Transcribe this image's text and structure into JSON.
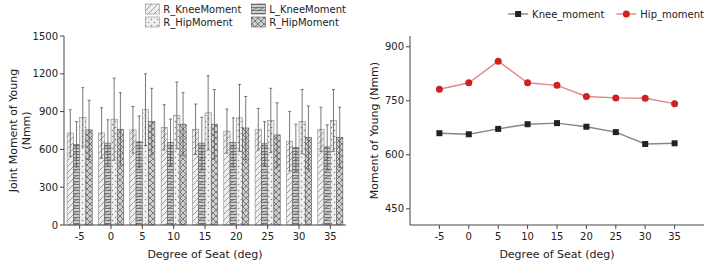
{
  "chart_data": [
    {
      "type": "bar",
      "categories": [
        -5,
        0,
        5,
        10,
        15,
        20,
        25,
        30,
        35
      ],
      "xlabel": "Degree of Seat (deg)",
      "ylabel": "Joint Moment of Young\n(Nmm)",
      "ylim": [
        0,
        1500
      ],
      "yticks": [
        0,
        300,
        600,
        900,
        1200,
        1500
      ],
      "grid": false,
      "legend": "upper right",
      "series": [
        {
          "name": "R_KneeMoment",
          "color": "#f0f0f0",
          "values": [
            730,
            730,
            755,
            775,
            760,
            745,
            760,
            665,
            760
          ],
          "errors": [
            185,
            200,
            185,
            180,
            200,
            175,
            165,
            235,
            175
          ]
        },
        {
          "name": "L_KneeMoment",
          "color": "#d0d0d0",
          "values": [
            640,
            650,
            660,
            655,
            650,
            655,
            645,
            615,
            620
          ],
          "errors": [
            180,
            185,
            205,
            185,
            205,
            195,
            175,
            185,
            175
          ]
        },
        {
          "name": "R_HipMoment",
          "color": "#f0f0f0",
          "values": [
            855,
            840,
            915,
            870,
            890,
            850,
            830,
            820,
            830
          ],
          "errors": [
            235,
            325,
            285,
            265,
            295,
            265,
            255,
            255,
            245
          ]
        },
        {
          "name": "R_HipMoment",
          "color": "#d0d0d0",
          "values": [
            755,
            760,
            820,
            800,
            800,
            770,
            715,
            695,
            695
          ],
          "errors": [
            235,
            290,
            265,
            250,
            275,
            250,
            255,
            250,
            240
          ]
        }
      ]
    },
    {
      "type": "line",
      "x": [
        -5,
        0,
        5,
        10,
        15,
        20,
        25,
        30,
        35
      ],
      "xlim": [
        -10,
        40
      ],
      "xticks": [
        -5,
        0,
        5,
        10,
        15,
        20,
        25,
        30,
        35
      ],
      "ylim": [
        405,
        930
      ],
      "yticks": [
        450,
        600,
        750,
        900
      ],
      "xlabel": "Degree of Seat (deg)",
      "ylabel": "Moment of Young (Nmm)",
      "grid": false,
      "legend": "upper right",
      "series": [
        {
          "name": "Knee_moment",
          "color": "#222222",
          "marker": "square",
          "line_style": "solid",
          "values": [
            660,
            657,
            672,
            685,
            688,
            678,
            663,
            630,
            632
          ]
        },
        {
          "name": "Hip_moment",
          "color": "#cc2222",
          "marker": "circle",
          "line_style": "solid",
          "values": [
            782,
            800,
            860,
            800,
            793,
            762,
            758,
            757,
            742
          ]
        }
      ]
    }
  ]
}
